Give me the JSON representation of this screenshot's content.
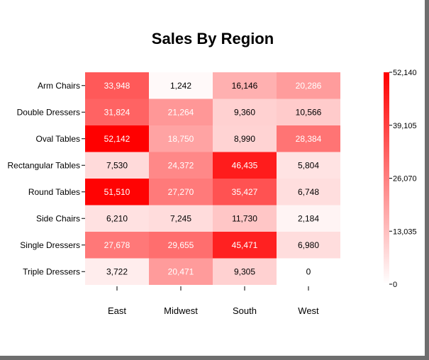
{
  "chart_data": {
    "type": "heatmap",
    "title": "Sales By Region",
    "columns": [
      "East",
      "Midwest",
      "South",
      "West"
    ],
    "rows": [
      "Arm Chairs",
      "Double Dressers",
      "Oval Tables",
      "Rectangular Tables",
      "Round Tables",
      "Side Chairs",
      "Single Dressers",
      "Triple Dressers"
    ],
    "values": [
      [
        33948,
        1242,
        16146,
        20286
      ],
      [
        31824,
        21264,
        9360,
        10566
      ],
      [
        52142,
        18750,
        8990,
        28384
      ],
      [
        7530,
        24372,
        46435,
        5804
      ],
      [
        51510,
        27270,
        35427,
        6748
      ],
      [
        6210,
        7245,
        11730,
        2184
      ],
      [
        27678,
        29655,
        45471,
        6980
      ],
      [
        3722,
        20471,
        9305,
        0
      ]
    ],
    "labels": [
      [
        "33,948",
        "1,242",
        "16,146",
        "20,286"
      ],
      [
        "31,824",
        "21,264",
        "9,360",
        "10,566"
      ],
      [
        "52,142",
        "18,750",
        "8,990",
        "28,384"
      ],
      [
        "7,530",
        "24,372",
        "46,435",
        "5,804"
      ],
      [
        "51,510",
        "27,270",
        "35,427",
        "6,748"
      ],
      [
        "6,210",
        "7,245",
        "11,730",
        "2,184"
      ],
      [
        "27,678",
        "29,655",
        "45,471",
        "6,980"
      ],
      [
        "3,722",
        "20,471",
        "9,305",
        "0"
      ]
    ],
    "color_range": [
      0,
      52140
    ],
    "color_low": "#ffffff",
    "color_high": "#ff0000",
    "legend_ticks": [
      52140,
      39105,
      26070,
      13035,
      0
    ],
    "legend_tick_labels": [
      "52,140",
      "39,105",
      "26,070",
      "13,035",
      "0"
    ],
    "legend_placement": "right",
    "grid": false
  }
}
